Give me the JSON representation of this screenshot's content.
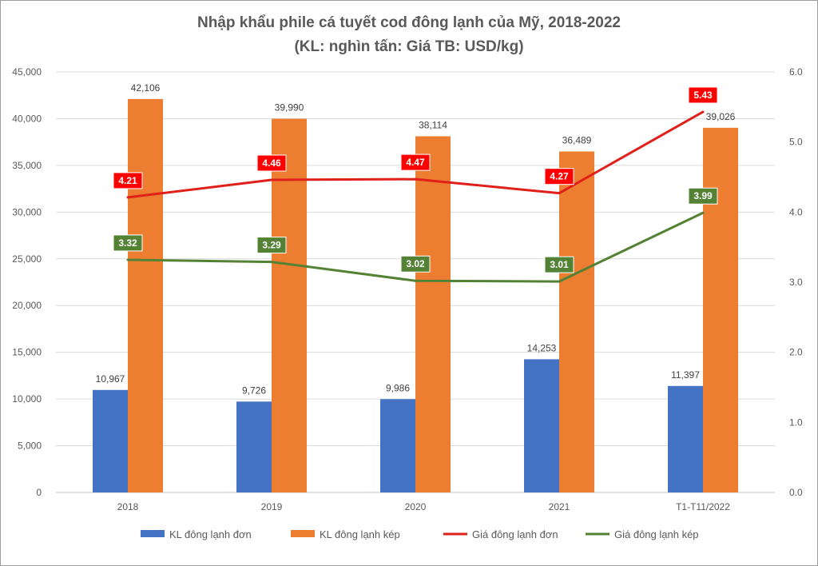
{
  "chart_data": {
    "type": "bar",
    "title": "Nhập khẩu phile cá tuyết cod đông lạnh của Mỹ, 2018-2022",
    "subtitle": "(KL: nghìn tấn: Giá TB: USD/kg)",
    "categories": [
      "2018",
      "2019",
      "2020",
      "2021",
      "T1-T11/2022"
    ],
    "y_left": {
      "lim": [
        0,
        45000
      ],
      "ticks": [
        "0",
        "5,000",
        "10,000",
        "15,000",
        "20,000",
        "25,000",
        "30,000",
        "35,000",
        "40,000",
        "45,000"
      ]
    },
    "y_right": {
      "lim": [
        0,
        6
      ],
      "ticks": [
        "0.0",
        "1.0",
        "2.0",
        "3.0",
        "4.0",
        "5.0",
        "6.0"
      ]
    },
    "grid": true,
    "legend_position": "bottom",
    "series": [
      {
        "name": "KL đông lạnh đơn",
        "type": "bar",
        "axis": "left",
        "color": "#4472c4",
        "values": [
          10967,
          9726,
          9986,
          14253,
          11397
        ],
        "labels": [
          "10,967",
          "9,726",
          "9,986",
          "14,253",
          "11,397"
        ]
      },
      {
        "name": "KL đông lạnh kép",
        "type": "bar",
        "axis": "left",
        "color": "#ed7d31",
        "values": [
          42106,
          39990,
          38114,
          36489,
          39026
        ],
        "labels": [
          "42,106",
          "39,990",
          "38,114",
          "36,489",
          "39,026"
        ]
      },
      {
        "name": "Giá đông lạnh đơn",
        "type": "line",
        "axis": "right",
        "color": "#e0201b",
        "label_bg": "#ff0000",
        "values": [
          4.21,
          4.46,
          4.47,
          4.27,
          5.43
        ],
        "labels": [
          "4.21",
          "4.46",
          "4.47",
          "4.27",
          "5.43"
        ]
      },
      {
        "name": "Giá đông lạnh kép",
        "type": "line",
        "axis": "right",
        "color": "#548235",
        "label_bg": "#548235",
        "values": [
          3.32,
          3.29,
          3.02,
          3.01,
          3.99
        ],
        "labels": [
          "3.32",
          "3.29",
          "3.02",
          "3.01",
          "3.99"
        ]
      }
    ]
  }
}
